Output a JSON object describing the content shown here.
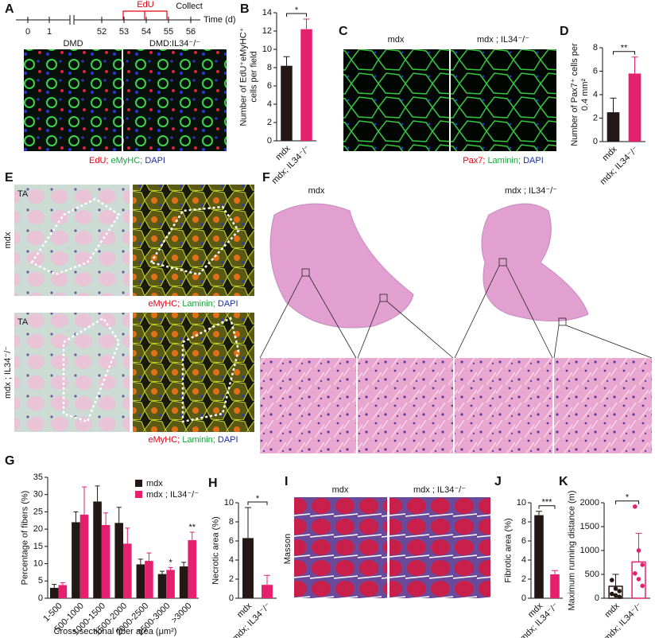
{
  "panels": {
    "letters": [
      "A",
      "B",
      "C",
      "D",
      "E",
      "F",
      "G",
      "H",
      "I",
      "J",
      "K"
    ],
    "A": {
      "timeline": {
        "ticks": [
          0,
          1,
          52,
          53,
          54,
          55,
          56
        ],
        "unit": "Time (d)",
        "edu": "EdU",
        "collect": "Collect"
      },
      "images": [
        "DMD",
        "DMD:IL34⁻/⁻"
      ],
      "stain": [
        "EdU;",
        "eMyHC;",
        "DAPI"
      ]
    },
    "C": {
      "images": [
        "mdx",
        "mdx ; IL34⁻/⁻"
      ],
      "stain": [
        "Pax7;",
        "Laminin;",
        "DAPI"
      ]
    },
    "E": {
      "tissue": [
        "TA",
        "TA"
      ],
      "rows": [
        "mdx",
        "mdx ; IL34⁻/⁻"
      ],
      "stain": [
        [
          "eMyHC;",
          "Laminin;",
          "DAPI"
        ],
        [
          "eMyHC;",
          "Laminin;",
          "DAPI"
        ]
      ]
    },
    "F": {
      "images": [
        "mdx",
        "mdx ; IL34⁻/⁻"
      ]
    },
    "I": {
      "stain": "Masson",
      "images": [
        "mdx",
        "mdx ; IL34⁻/⁻"
      ]
    }
  },
  "chart_data": [
    {
      "type": "bar",
      "ylabel": [
        "Number of EdU⁺eMyHC⁺",
        "cells per field"
      ],
      "categories": [
        "mdx",
        "mdx; IL34⁻/⁻"
      ],
      "values": [
        8.2,
        12.2
      ],
      "errors": [
        1.0,
        1.1
      ],
      "colors": [
        "#231815",
        "#e5206f"
      ],
      "ylim": [
        0,
        14
      ],
      "yticks": [
        0,
        2,
        4,
        6,
        8,
        10,
        12,
        14
      ],
      "significance": "*"
    },
    {
      "type": "bar",
      "ylabel": [
        "Number of Pax7⁺ cells per",
        "0.4 mm²"
      ],
      "categories": [
        "mdx",
        "mdx; IL34⁻/⁻"
      ],
      "values": [
        2.5,
        5.8
      ],
      "errors": [
        1.2,
        1.4
      ],
      "colors": [
        "#231815",
        "#e5206f"
      ],
      "ylim": [
        0,
        8
      ],
      "yticks": [
        0,
        2,
        4,
        6,
        8
      ],
      "significance": "**"
    },
    {
      "type": "grouped_bar",
      "ylabel": [
        "Percentage of fibers (%)"
      ],
      "xlabel": "Cross-sectional fiber area (μm²)",
      "categories": [
        "1-500",
        "500-1000",
        "1000-1500",
        "1500-2000",
        "2000-2500",
        "2500-3000",
        ">3000"
      ],
      "series": [
        {
          "name": "mdx",
          "color": "#231815",
          "values": [
            3,
            22,
            28,
            21.8,
            9.8,
            7,
            9.2
          ],
          "errors": [
            1,
            3,
            4.5,
            4.5,
            1.5,
            0.8,
            1.2
          ]
        },
        {
          "name": "mdx ; IL34⁻/⁻",
          "color": "#e5206f",
          "values": [
            3.8,
            24.2,
            21.2,
            15.8,
            10.8,
            8.2,
            16.8
          ],
          "errors": [
            0.7,
            8,
            3.5,
            4.5,
            2.3,
            0.7,
            2.3
          ]
        }
      ],
      "significance": [
        null,
        null,
        null,
        null,
        null,
        "*",
        "**"
      ],
      "ylim": [
        0,
        35
      ],
      "yticks": [
        0,
        5,
        10,
        15,
        20,
        25,
        30,
        35
      ],
      "legend": "top-right"
    },
    {
      "type": "bar",
      "ylabel": [
        "Necrotic area (%)"
      ],
      "categories": [
        "mdx",
        "mdx; IL34⁻/⁻"
      ],
      "values": [
        6.3,
        1.4
      ],
      "errors": [
        3.2,
        1.0
      ],
      "colors": [
        "#231815",
        "#e5206f"
      ],
      "ylim": [
        0,
        10
      ],
      "yticks": [
        0,
        2,
        4,
        6,
        8,
        10
      ],
      "significance": "*"
    },
    {
      "type": "bar",
      "ylabel": [
        "Fibrotic area (%)"
      ],
      "categories": [
        "mdx",
        "mdx; IL34⁻/⁻"
      ],
      "values": [
        8.7,
        2.5
      ],
      "errors": [
        0.4,
        0.4
      ],
      "colors": [
        "#231815",
        "#e5206f"
      ],
      "ylim": [
        0,
        10
      ],
      "yticks": [
        0,
        2,
        4,
        6,
        8,
        10
      ],
      "significance": "***"
    },
    {
      "type": "bar_scatter",
      "ylabel": [
        "Maximum running distance (m)"
      ],
      "categories": [
        "mdx",
        "mdx; IL34⁻/⁻"
      ],
      "values": [
        250,
        760
      ],
      "errors": [
        250,
        600
      ],
      "colors": [
        "#231815",
        "#e5206f"
      ],
      "points": [
        [
          380,
          200,
          150,
          90,
          60,
          30
        ],
        [
          1920,
          1000,
          700,
          520,
          400,
          260
        ]
      ],
      "ylim": [
        0,
        2000
      ],
      "yticks": [
        0,
        500,
        1000,
        1500,
        2000
      ],
      "significance": "*"
    }
  ]
}
